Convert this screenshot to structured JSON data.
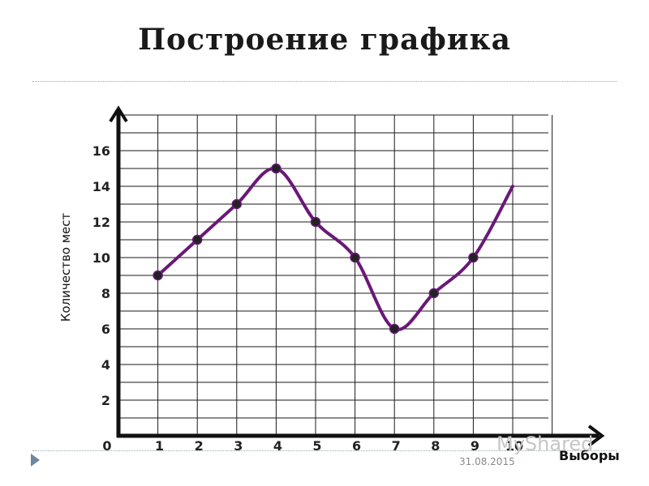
{
  "slide": {
    "title": "Построение графика",
    "date": "31.08.2015",
    "watermark": "MyShared"
  },
  "colors": {
    "line": "#6a1878",
    "point": "#222222",
    "grid": "#1a1a1a",
    "axis": "#111111",
    "nav_arrow": "#6e87a0"
  },
  "chart_data": {
    "type": "line",
    "title": "Построение графика",
    "xlabel": "Выборы",
    "ylabel": "Количество мест",
    "x_ticks": [
      "0",
      "1",
      "2",
      "3",
      "4",
      "5",
      "6",
      "7",
      "8",
      "9",
      "10"
    ],
    "y_ticks": [
      "2",
      "4",
      "6",
      "8",
      "10",
      "12",
      "14",
      "16"
    ],
    "xlim": [
      0,
      11
    ],
    "ylim": [
      0,
      18
    ],
    "grid": true,
    "curve": "smooth",
    "series": [
      {
        "x": [
          1,
          2,
          3,
          4,
          5,
          6,
          7,
          8,
          9,
          10
        ],
        "y": [
          9,
          11,
          13,
          15,
          12,
          10,
          6,
          8,
          10,
          14
        ]
      }
    ]
  }
}
